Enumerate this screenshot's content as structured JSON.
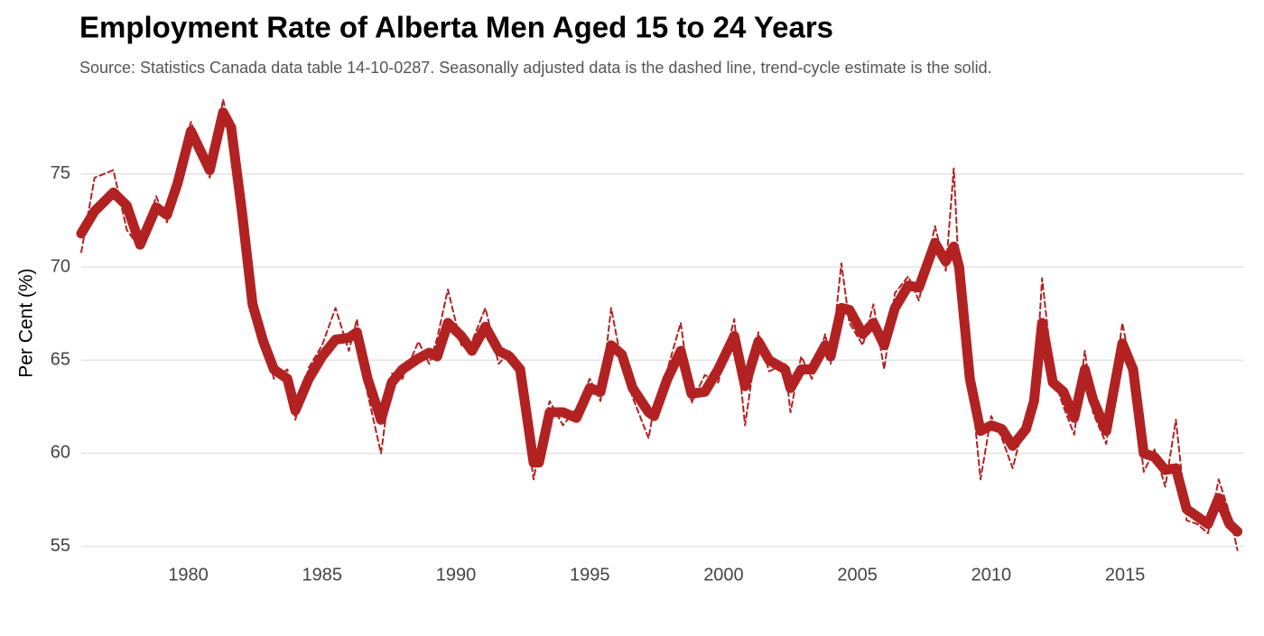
{
  "chart_data": {
    "type": "line",
    "title": "Employment Rate of Alberta Men Aged 15 to 24 Years",
    "subtitle": "Source: Statistics Canada data table 14-10-0287. Seasonally adjusted data is the dashed line, trend-cycle estimate is the solid.",
    "y_label": "Per Cent (%)",
    "xlim": [
      1976,
      2019.45
    ],
    "xticks": [
      1980,
      1985,
      1990,
      1995,
      2000,
      2005,
      2010,
      2015
    ],
    "ylim": [
      54.5,
      79.3
    ],
    "yticks": [
      55,
      60,
      65,
      70,
      75
    ],
    "grid": true,
    "x": [
      1976.0,
      1976.5,
      1977.2,
      1977.7,
      1978.2,
      1978.8,
      1979.2,
      1979.6,
      1980.1,
      1980.8,
      1981.3,
      1981.6,
      1982.0,
      1982.4,
      1982.8,
      1983.2,
      1983.7,
      1984.0,
      1984.5,
      1985.0,
      1985.5,
      1986.0,
      1986.3,
      1986.7,
      1987.2,
      1987.6,
      1988.0,
      1988.6,
      1989.0,
      1989.3,
      1989.7,
      1990.2,
      1990.6,
      1991.1,
      1991.6,
      1992.0,
      1992.4,
      1992.9,
      1993.1,
      1993.5,
      1994.0,
      1994.5,
      1995.0,
      1995.4,
      1995.8,
      1996.2,
      1996.6,
      1997.2,
      1997.4,
      1997.9,
      1998.4,
      1998.8,
      1999.3,
      1999.8,
      2000.4,
      2000.8,
      2001.3,
      2001.7,
      2002.3,
      2002.5,
      2002.9,
      2003.3,
      2003.8,
      2004.0,
      2004.4,
      2004.7,
      2005.2,
      2005.6,
      2006.0,
      2006.4,
      2006.9,
      2007.3,
      2007.9,
      2008.3,
      2008.6,
      2008.8,
      2009.2,
      2009.6,
      2010.0,
      2010.4,
      2010.8,
      2011.3,
      2011.6,
      2011.9,
      2012.3,
      2012.7,
      2013.1,
      2013.5,
      2013.8,
      2014.3,
      2014.9,
      2015.3,
      2015.7,
      2016.1,
      2016.5,
      2016.9,
      2017.3,
      2017.7,
      2018.1,
      2018.5,
      2018.9,
      2019.2
    ],
    "series": [
      {
        "name": "Seasonally adjusted",
        "color": "#b22222",
        "dashed": true,
        "width": 2,
        "values": [
          70.8,
          74.8,
          75.2,
          72.0,
          71.0,
          73.8,
          72.4,
          75.0,
          77.8,
          74.8,
          79.0,
          77.0,
          73.5,
          67.5,
          66.4,
          64.0,
          64.5,
          61.8,
          64.6,
          65.8,
          67.8,
          65.5,
          67.2,
          63.2,
          60.0,
          64.3,
          64.0,
          66.0,
          64.8,
          66.2,
          68.8,
          65.8,
          66.0,
          67.8,
          64.8,
          65.5,
          64.0,
          58.6,
          60.2,
          62.8,
          61.5,
          62.4,
          64.0,
          62.8,
          67.8,
          64.8,
          63.0,
          60.8,
          62.5,
          64.5,
          67.0,
          62.7,
          64.2,
          63.8,
          67.2,
          61.5,
          66.5,
          64.4,
          64.8,
          62.2,
          65.2,
          64.0,
          66.4,
          64.8,
          70.2,
          67.0,
          65.8,
          68.0,
          64.5,
          68.6,
          69.5,
          68.2,
          72.2,
          69.8,
          75.3,
          69.5,
          64.5,
          58.6,
          62.0,
          60.8,
          59.2,
          62.0,
          62.2,
          69.4,
          64.2,
          62.5,
          61.0,
          65.5,
          62.2,
          60.5,
          67.0,
          64.0,
          59.0,
          60.2,
          58.2,
          61.8,
          56.4,
          56.2,
          55.7,
          58.6,
          56.8,
          54.8
        ]
      },
      {
        "name": "Trend-cycle",
        "color": "#b22222",
        "dashed": false,
        "width": 11,
        "values": [
          71.8,
          73.0,
          74.0,
          73.3,
          71.2,
          73.2,
          72.8,
          74.5,
          77.3,
          75.2,
          78.3,
          77.5,
          73.0,
          68.0,
          66.0,
          64.5,
          64.0,
          62.3,
          64.0,
          65.2,
          66.1,
          66.2,
          66.5,
          64.0,
          61.8,
          63.8,
          64.5,
          65.1,
          65.4,
          65.2,
          67.0,
          66.3,
          65.5,
          66.8,
          65.5,
          65.2,
          64.5,
          59.5,
          59.5,
          62.2,
          62.2,
          61.9,
          63.5,
          63.3,
          65.8,
          65.3,
          63.5,
          62.2,
          62.0,
          64.0,
          65.5,
          63.2,
          63.3,
          64.5,
          66.3,
          63.6,
          66.0,
          65.0,
          64.5,
          63.5,
          64.5,
          64.5,
          65.8,
          65.2,
          67.8,
          67.7,
          66.4,
          67.0,
          65.8,
          67.8,
          69.0,
          68.9,
          71.3,
          70.3,
          71.1,
          70.0,
          64.0,
          61.2,
          61.5,
          61.3,
          60.4,
          61.3,
          62.8,
          67.0,
          63.8,
          63.3,
          61.9,
          64.5,
          62.9,
          61.2,
          65.9,
          64.5,
          60.0,
          59.8,
          59.1,
          59.2,
          57.0,
          56.6,
          56.2,
          57.6,
          56.2,
          55.8
        ]
      }
    ]
  }
}
